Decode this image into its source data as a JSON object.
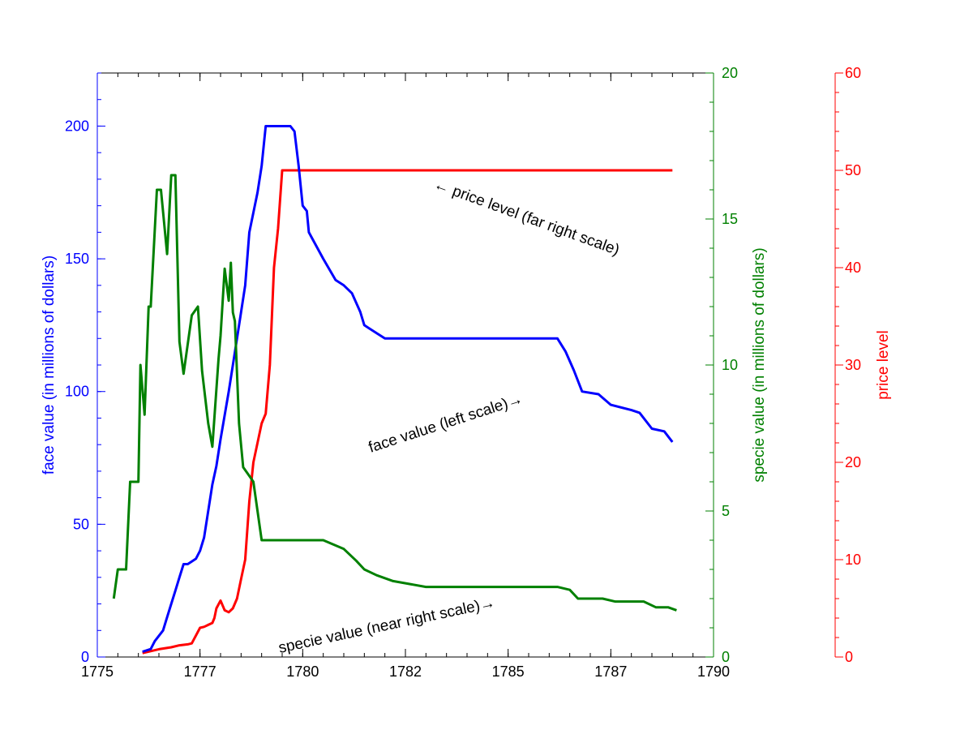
{
  "chart_data": {
    "type": "line",
    "title": "",
    "x_axis": {
      "label": "",
      "ticks": [
        1775,
        1777,
        1780,
        1782,
        1785,
        1787,
        1790
      ],
      "tick_values": [
        1775,
        1777.5,
        1780,
        1782.5,
        1785,
        1787.5,
        1790
      ],
      "range": [
        1775,
        1790
      ],
      "color": "#000000"
    },
    "y_axes": [
      {
        "id": "left",
        "label": "face value (in millions of dollars)",
        "range": [
          0,
          220
        ],
        "ticks": [
          0,
          50,
          100,
          150,
          200
        ],
        "color": "#0000ff",
        "position": "left"
      },
      {
        "id": "near_right",
        "label": "specie value (in millions of dollars)",
        "range": [
          0,
          20
        ],
        "ticks": [
          0,
          5,
          10,
          15,
          20
        ],
        "color": "#008000",
        "position": "right"
      },
      {
        "id": "far_right",
        "label": "price level",
        "range": [
          0,
          60
        ],
        "ticks": [
          0,
          10,
          20,
          30,
          40,
          50,
          60
        ],
        "color": "#ff0000",
        "position": "far-right"
      }
    ],
    "series": [
      {
        "id": "face",
        "axis": "left",
        "color": "#0000ff",
        "x": [
          1776.1,
          1776.3,
          1776.4,
          1776.6,
          1776.7,
          1776.8,
          1776.9,
          1777.0,
          1777.1,
          1777.2,
          1777.3,
          1777.4,
          1777.5,
          1777.6,
          1777.7,
          1777.8,
          1777.9,
          1778.0,
          1778.2,
          1778.4,
          1778.6,
          1778.7,
          1778.9,
          1779.0,
          1779.1,
          1779.2,
          1779.3,
          1779.5,
          1779.6,
          1779.7,
          1779.8,
          1779.9,
          1780.0,
          1780.1,
          1780.15,
          1780.5,
          1780.8,
          1781.0,
          1781.2,
          1781.4,
          1781.5,
          1781.6,
          1781.8,
          1782.0,
          1782.2,
          1782.4,
          1782.6,
          1782.8,
          1783.0,
          1783.5,
          1784.0,
          1785.0,
          1786.2,
          1786.4,
          1786.6,
          1786.8,
          1787.2,
          1787.5,
          1788.0,
          1788.2,
          1788.5,
          1788.8,
          1789.0
        ],
        "y": [
          2,
          3,
          6,
          10,
          15,
          20,
          25,
          30,
          35,
          35,
          36,
          37,
          40,
          45,
          55,
          65,
          72,
          82,
          100,
          120,
          140,
          160,
          175,
          185,
          200,
          200,
          200,
          200,
          200,
          200,
          198,
          185,
          170,
          168,
          160,
          150,
          142,
          140,
          137,
          130,
          125,
          124,
          122,
          120,
          120,
          120,
          120,
          120,
          120,
          120,
          120,
          120,
          120,
          115,
          108,
          100,
          99,
          95,
          93,
          92,
          86,
          85,
          81
        ]
      },
      {
        "id": "specie",
        "axis": "near_right",
        "color": "#008000",
        "x": [
          1775.4,
          1775.5,
          1775.7,
          1775.8,
          1776.0,
          1776.05,
          1776.15,
          1776.25,
          1776.3,
          1776.45,
          1776.55,
          1776.7,
          1776.8,
          1776.9,
          1777.0,
          1777.1,
          1777.3,
          1777.45,
          1777.55,
          1777.7,
          1777.8,
          1777.95,
          1778.0,
          1778.1,
          1778.2,
          1778.25,
          1778.3,
          1778.35,
          1778.45,
          1778.55,
          1778.7,
          1778.8,
          1778.9,
          1779.0,
          1779.2,
          1779.3,
          1779.5,
          1780.0,
          1780.5,
          1781.0,
          1781.3,
          1781.5,
          1781.8,
          1782.2,
          1782.6,
          1783.0,
          1784.0,
          1785.0,
          1786.2,
          1786.5,
          1786.7,
          1787.0,
          1787.3,
          1787.6,
          1788.0,
          1788.3,
          1788.6,
          1788.9,
          1789.1
        ],
        "y": [
          2.0,
          3.0,
          3.0,
          6.0,
          6.0,
          10.0,
          8.3,
          12.0,
          12.0,
          16.0,
          16.0,
          13.8,
          16.5,
          16.5,
          10.8,
          9.7,
          11.7,
          12.0,
          9.8,
          8.0,
          7.2,
          10.2,
          11.0,
          13.3,
          12.2,
          13.5,
          11.8,
          11.5,
          8.0,
          6.5,
          6.2,
          6.0,
          5.0,
          4.0,
          4.0,
          4.0,
          4.0,
          4.0,
          4.0,
          3.7,
          3.3,
          3.0,
          2.8,
          2.6,
          2.5,
          2.4,
          2.4,
          2.4,
          2.4,
          2.3,
          2.0,
          2.0,
          2.0,
          1.9,
          1.9,
          1.9,
          1.7,
          1.7,
          1.6
        ]
      },
      {
        "id": "price",
        "axis": "far_right",
        "color": "#ff0000",
        "x": [
          1776.1,
          1776.5,
          1776.8,
          1777.0,
          1777.2,
          1777.3,
          1777.5,
          1777.6,
          1777.8,
          1777.85,
          1777.9,
          1778.0,
          1778.1,
          1778.2,
          1778.3,
          1778.4,
          1778.5,
          1778.6,
          1778.7,
          1778.8,
          1778.9,
          1779.0,
          1779.1,
          1779.2,
          1779.3,
          1779.4,
          1779.5,
          1779.6,
          1779.7,
          1779.8,
          1779.9,
          1780.0,
          1780.05,
          1780.1,
          1780.15,
          1780.5,
          1781.0,
          1782.0,
          1785.0,
          1788.0,
          1789.0
        ],
        "y": [
          0.4,
          0.8,
          1.0,
          1.2,
          1.3,
          1.4,
          3.0,
          3.1,
          3.5,
          4.0,
          5.0,
          5.8,
          4.8,
          4.6,
          5.0,
          6.0,
          8.0,
          10.0,
          16.0,
          20.0,
          22.0,
          24.0,
          25.0,
          30.0,
          40.0,
          44.0,
          50.0,
          50.0,
          50.0,
          50.0,
          50.0,
          50.0,
          50.0,
          50.0,
          50.0,
          50.0,
          50.0,
          50.0,
          50.0,
          50.0,
          50.0
        ]
      }
    ],
    "annotations": [
      {
        "id": "price-annotation",
        "text": "← price level (far right scale)"
      },
      {
        "id": "face-annotation",
        "text": "face value (left scale)→"
      },
      {
        "id": "specie-annotation",
        "text": "specie value (near right scale)→"
      }
    ],
    "grid": false,
    "legend": "none"
  }
}
